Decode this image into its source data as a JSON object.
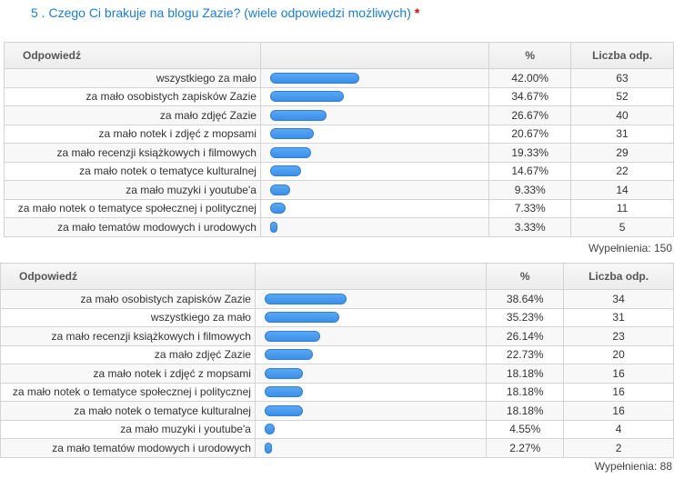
{
  "question": {
    "title": "5 . Czego Ci brakuje na blogu Zazie? (wiele odpowiedzi możliwych)",
    "required_mark": "*"
  },
  "headers": {
    "answer": "Odpowiedź",
    "percent": "%",
    "count": "Liczba odp."
  },
  "accent_color": "#3b8fe8",
  "tables": [
    {
      "rows": [
        {
          "answer": "wszystkiego za mało",
          "percent": "42.00%",
          "value": 42.0,
          "count": "63"
        },
        {
          "answer": "za mało osobistych zapisków Zazie",
          "percent": "34.67%",
          "value": 34.67,
          "count": "52"
        },
        {
          "answer": "za mało zdjęć Zazie",
          "percent": "26.67%",
          "value": 26.67,
          "count": "40"
        },
        {
          "answer": "za mało notek i zdjęć z mopsami",
          "percent": "20.67%",
          "value": 20.67,
          "count": "31"
        },
        {
          "answer": "za mało recenzji książkowych i filmowych",
          "percent": "19.33%",
          "value": 19.33,
          "count": "29"
        },
        {
          "answer": "za mało notek o tematyce kulturalnej",
          "percent": "14.67%",
          "value": 14.67,
          "count": "22"
        },
        {
          "answer": "za mało muzyki i youtube'a",
          "percent": "9.33%",
          "value": 9.33,
          "count": "14"
        },
        {
          "answer": "za mało notek o tematyce społecznej i politycznej",
          "percent": "7.33%",
          "value": 7.33,
          "count": "11"
        },
        {
          "answer": "za mało tematów modowych i urodowych",
          "percent": "3.33%",
          "value": 3.33,
          "count": "5"
        }
      ],
      "footer": "Wypełnienia: 150"
    },
    {
      "rows": [
        {
          "answer": "za mało osobistych zapisków Zazie",
          "percent": "38.64%",
          "value": 38.64,
          "count": "34"
        },
        {
          "answer": "wszystkiego za mało",
          "percent": "35.23%",
          "value": 35.23,
          "count": "31"
        },
        {
          "answer": "za mało recenzji książkowych i filmowych",
          "percent": "26.14%",
          "value": 26.14,
          "count": "23"
        },
        {
          "answer": "za mało zdjęć Zazie",
          "percent": "22.73%",
          "value": 22.73,
          "count": "20"
        },
        {
          "answer": "za mało notek i zdjęć z mopsami",
          "percent": "18.18%",
          "value": 18.18,
          "count": "16"
        },
        {
          "answer": "za mało notek o tematyce społecznej i politycznej",
          "percent": "18.18%",
          "value": 18.18,
          "count": "16"
        },
        {
          "answer": "za mało notek o tematyce kulturalnej",
          "percent": "18.18%",
          "value": 18.18,
          "count": "16"
        },
        {
          "answer": "za mało muzyki i youtube'a",
          "percent": "4.55%",
          "value": 4.55,
          "count": "4"
        },
        {
          "answer": "za mało tematów modowych i urodowych",
          "percent": "2.27%",
          "value": 2.27,
          "count": "2"
        }
      ],
      "footer": "Wypełnienia: 88"
    }
  ]
}
